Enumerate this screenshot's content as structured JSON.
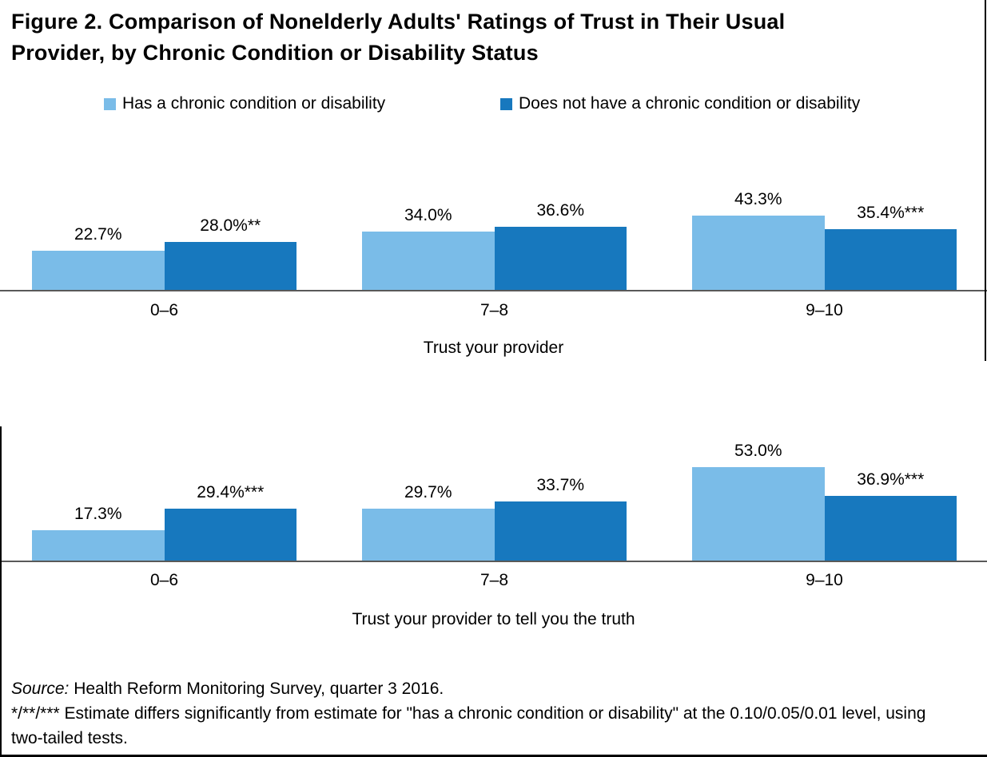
{
  "figure": {
    "title_line1": "Figure 2. Comparison of Nonelderly Adults' Ratings of Trust in Their Usual",
    "title_line2": "Provider, by Chronic Condition or Disability Status"
  },
  "legend": {
    "items": [
      {
        "label": "Has a chronic condition or disability",
        "color": "#7ABCE8"
      },
      {
        "label": "Does not have a chronic condition or disability",
        "color": "#1778BE"
      }
    ]
  },
  "colors": {
    "series_light": "#7ABCE8",
    "series_dark": "#1778BE",
    "axis_line": "#595959",
    "border": "#000000"
  },
  "chart_data": [
    {
      "type": "bar",
      "xlabel": "Trust your provider",
      "ylabel": "",
      "unit": "%",
      "ylim": [
        0,
        50
      ],
      "grid": false,
      "legend_position": "top",
      "categories": [
        "0–6",
        "7–8",
        "9–10"
      ],
      "series": [
        {
          "name": "Has a chronic condition or disability",
          "values": [
            22.7,
            34.0,
            43.3
          ],
          "data_labels": [
            "22.7%",
            "34.0%",
            "43.3%"
          ]
        },
        {
          "name": "Does not have a chronic condition or disability",
          "values": [
            28.0,
            36.6,
            35.4
          ],
          "data_labels": [
            "28.0%**",
            "36.6%",
            "35.4%***"
          ]
        }
      ]
    },
    {
      "type": "bar",
      "xlabel": "Trust your provider to tell you the truth",
      "ylabel": "",
      "unit": "%",
      "ylim": [
        0,
        60
      ],
      "grid": false,
      "legend_position": "top",
      "categories": [
        "0–6",
        "7–8",
        "9–10"
      ],
      "series": [
        {
          "name": "Has a chronic condition or disability",
          "values": [
            17.3,
            29.7,
            53.0
          ],
          "data_labels": [
            "17.3%",
            "29.7%",
            "53.0%"
          ]
        },
        {
          "name": "Does not have a chronic condition or disability",
          "values": [
            29.4,
            33.7,
            36.9
          ],
          "data_labels": [
            "29.4%***",
            "33.7%",
            "36.9%***"
          ]
        }
      ]
    }
  ],
  "footer": {
    "source_label": "Source:",
    "source_text": " Health Reform Monitoring Survey, quarter 3 2016.",
    "significance_note": "*/**/*** Estimate differs significantly from estimate for \"has a chronic condition or disability\" at the 0.10/0.05/0.01 level, using two-tailed tests."
  }
}
